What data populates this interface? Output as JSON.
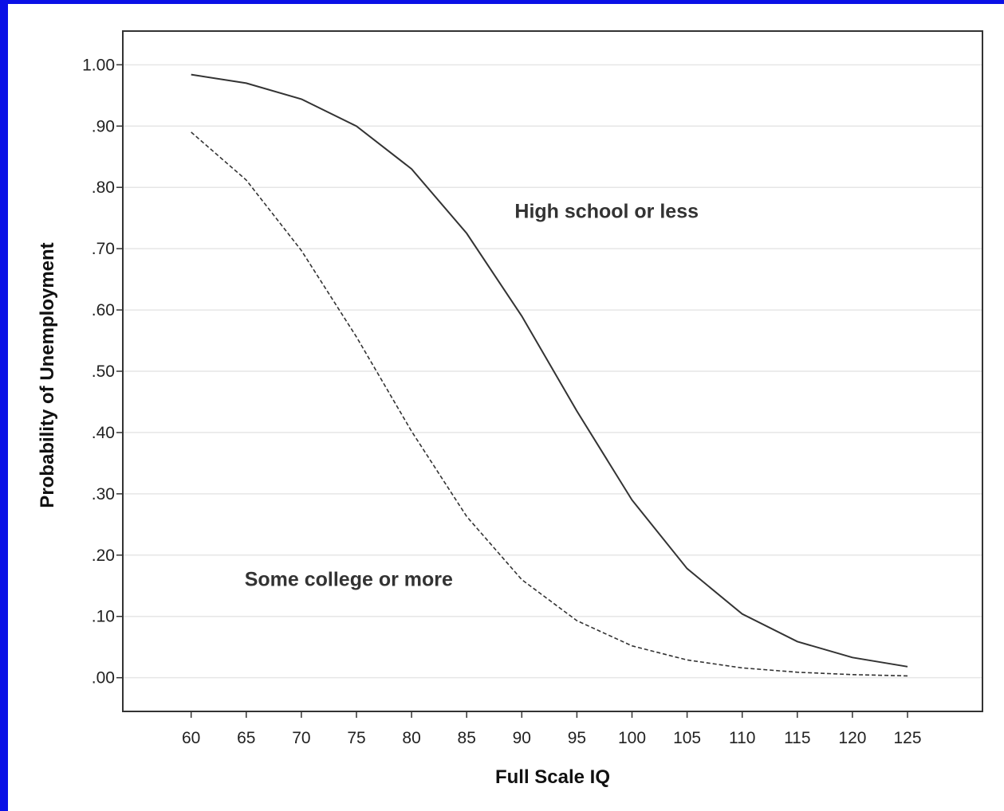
{
  "colors": {
    "background_border": "#0a10e6",
    "plot_background": "#ffffff",
    "gridline": "#e6e6e6",
    "line": "#333333"
  },
  "chart_data": {
    "type": "line",
    "xlabel": "Full Scale IQ",
    "ylabel": "Probability of Unemployment",
    "x": [
      60,
      65,
      70,
      75,
      80,
      85,
      90,
      95,
      100,
      105,
      110,
      115,
      120,
      125
    ],
    "x_tick_labels": [
      "60",
      "65",
      "70",
      "75",
      "80",
      "85",
      "90",
      "95",
      "100",
      "105",
      "110",
      "115",
      "120",
      "125"
    ],
    "y_ticks": [
      0,
      0.1,
      0.2,
      0.3,
      0.4,
      0.5,
      0.6,
      0.7,
      0.8,
      0.9,
      1.0
    ],
    "y_tick_labels": [
      ".00",
      ".10",
      ".20",
      ".30",
      ".40",
      ".50",
      ".60",
      ".70",
      ".80",
      ".90",
      "1.00"
    ],
    "ylim": [
      -0.055,
      1.055
    ],
    "xlim": [
      53.8,
      131.8
    ],
    "grid": "horizontal",
    "series": [
      {
        "name": "High school or less",
        "style": "solid",
        "values": [
          0.984,
          0.97,
          0.944,
          0.9,
          0.83,
          0.725,
          0.59,
          0.435,
          0.29,
          0.178,
          0.104,
          0.059,
          0.033,
          0.018
        ]
      },
      {
        "name": "Some college or more",
        "style": "dashed",
        "values": [
          0.89,
          0.812,
          0.697,
          0.556,
          0.402,
          0.263,
          0.16,
          0.093,
          0.052,
          0.029,
          0.016,
          0.009,
          0.005,
          0.003
        ]
      }
    ],
    "annotations": [
      {
        "text": "High school or less",
        "series": 0,
        "x": 97.7,
        "y": 0.75
      },
      {
        "text": "Some college or more",
        "series": 1,
        "x": 74.3,
        "y": 0.15
      }
    ]
  }
}
